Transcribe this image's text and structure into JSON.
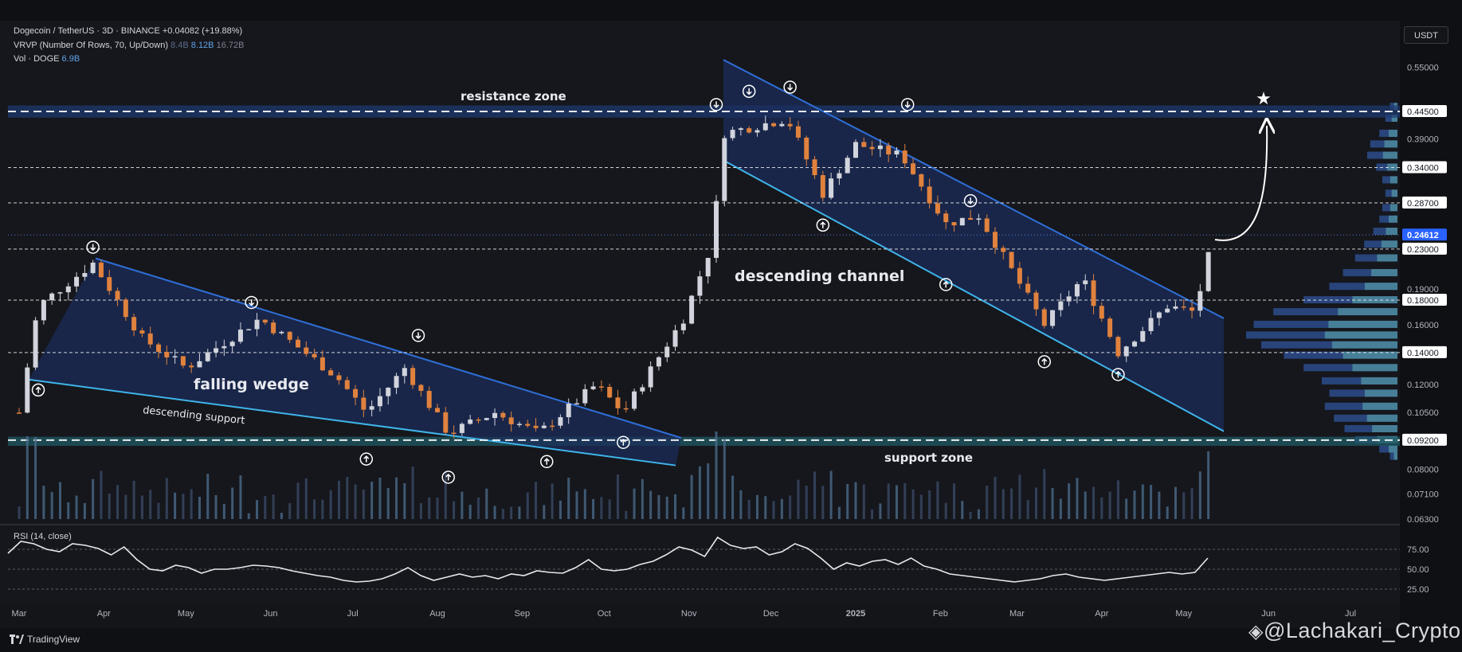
{
  "header": {
    "symbol_line": "Dogecoin / TetherUS · 3D · BINANCE",
    "change": "+0.04082 (+19.88%)",
    "vrvp_label": "VRVP (Number Of Rows, 70, Up/Down)",
    "vrvp_v1": "8.4B",
    "vrvp_v2": "8.12B",
    "vrvp_v3": "16.72B",
    "vol_label": "Vol · DOGE",
    "vol_value": "6.9B"
  },
  "toolbar": {
    "unit": "USDT"
  },
  "annotations": {
    "resistance": "resistance zone",
    "support": "support zone",
    "wedge": "falling wedge",
    "desc_support": "descending support",
    "channel": "descending channel"
  },
  "chart_data": {
    "type": "candlestick",
    "title": "Dogecoin / TetherUS · 3D · BINANCE",
    "y_axis": {
      "scale": "log",
      "ticks": [
        0.063,
        0.071,
        0.08,
        0.092,
        0.105,
        0.12,
        0.14,
        0.16,
        0.18,
        0.19,
        0.23,
        0.287,
        0.34,
        0.39,
        0.445,
        0.55
      ]
    },
    "highlighted_levels": [
      0.445,
      0.34,
      0.287,
      0.23,
      0.18,
      0.14,
      0.092
    ],
    "current_price": 0.24612,
    "x_axis": {
      "ticks": [
        "Mar",
        "Apr",
        "May",
        "Jun",
        "Jul",
        "Aug",
        "Sep",
        "Oct",
        "Nov",
        "Dec",
        "2025",
        "Feb",
        "Mar",
        "Apr",
        "May",
        "Jun",
        "Jul"
      ]
    },
    "anchors": [
      {
        "date": "2024-03-01",
        "price": 0.105
      },
      {
        "date": "2024-03-08",
        "price": 0.175
      },
      {
        "date": "2024-03-28",
        "price": 0.215
      },
      {
        "date": "2024-04-15",
        "price": 0.15
      },
      {
        "date": "2024-05-01",
        "price": 0.13
      },
      {
        "date": "2024-05-28",
        "price": 0.165
      },
      {
        "date": "2024-06-25",
        "price": 0.125
      },
      {
        "date": "2024-07-06",
        "price": 0.105
      },
      {
        "date": "2024-07-20",
        "price": 0.13
      },
      {
        "date": "2024-08-05",
        "price": 0.095
      },
      {
        "date": "2024-08-22",
        "price": 0.105
      },
      {
        "date": "2024-09-07",
        "price": 0.095
      },
      {
        "date": "2024-09-28",
        "price": 0.12
      },
      {
        "date": "2024-10-08",
        "price": 0.105
      },
      {
        "date": "2024-10-30",
        "price": 0.165
      },
      {
        "date": "2024-11-10",
        "price": 0.24
      },
      {
        "date": "2024-11-13",
        "price": 0.4
      },
      {
        "date": "2024-12-07",
        "price": 0.43
      },
      {
        "date": "2024-12-20",
        "price": 0.3
      },
      {
        "date": "2025-01-01",
        "price": 0.38
      },
      {
        "date": "2025-01-18",
        "price": 0.36
      },
      {
        "date": "2025-02-03",
        "price": 0.26
      },
      {
        "date": "2025-02-15",
        "price": 0.27
      },
      {
        "date": "2025-03-11",
        "price": 0.16
      },
      {
        "date": "2025-03-25",
        "price": 0.2
      },
      {
        "date": "2025-04-07",
        "price": 0.14
      },
      {
        "date": "2025-04-25",
        "price": 0.175
      },
      {
        "date": "2025-05-05",
        "price": 0.17
      },
      {
        "date": "2025-05-12",
        "price": 0.24612
      }
    ],
    "rsi": {
      "label": "RSI (14, close)",
      "levels": [
        75,
        50,
        25
      ],
      "values": [
        70,
        85,
        82,
        75,
        72,
        82,
        80,
        76,
        68,
        78,
        62,
        50,
        48,
        55,
        52,
        45,
        50,
        50,
        52,
        55,
        54,
        52,
        48,
        45,
        42,
        40,
        36,
        34,
        35,
        38,
        44,
        52,
        42,
        36,
        40,
        44,
        40,
        42,
        38,
        44,
        42,
        48,
        46,
        45,
        52,
        62,
        50,
        48,
        50,
        56,
        60,
        68,
        78,
        74,
        66,
        90,
        80,
        76,
        78,
        68,
        72,
        82,
        76,
        64,
        50,
        58,
        54,
        60,
        62,
        56,
        64,
        54,
        50,
        44,
        42,
        40,
        38,
        36,
        34,
        36,
        38,
        42,
        44,
        40,
        38,
        36,
        38,
        40,
        42,
        44,
        46,
        44,
        46,
        64
      ]
    },
    "volume_label": "Vol · DOGE",
    "volume_value": "6.9B"
  },
  "footer": {
    "brand": "TradingView",
    "watermark": "@Lachakari_Crypto"
  }
}
